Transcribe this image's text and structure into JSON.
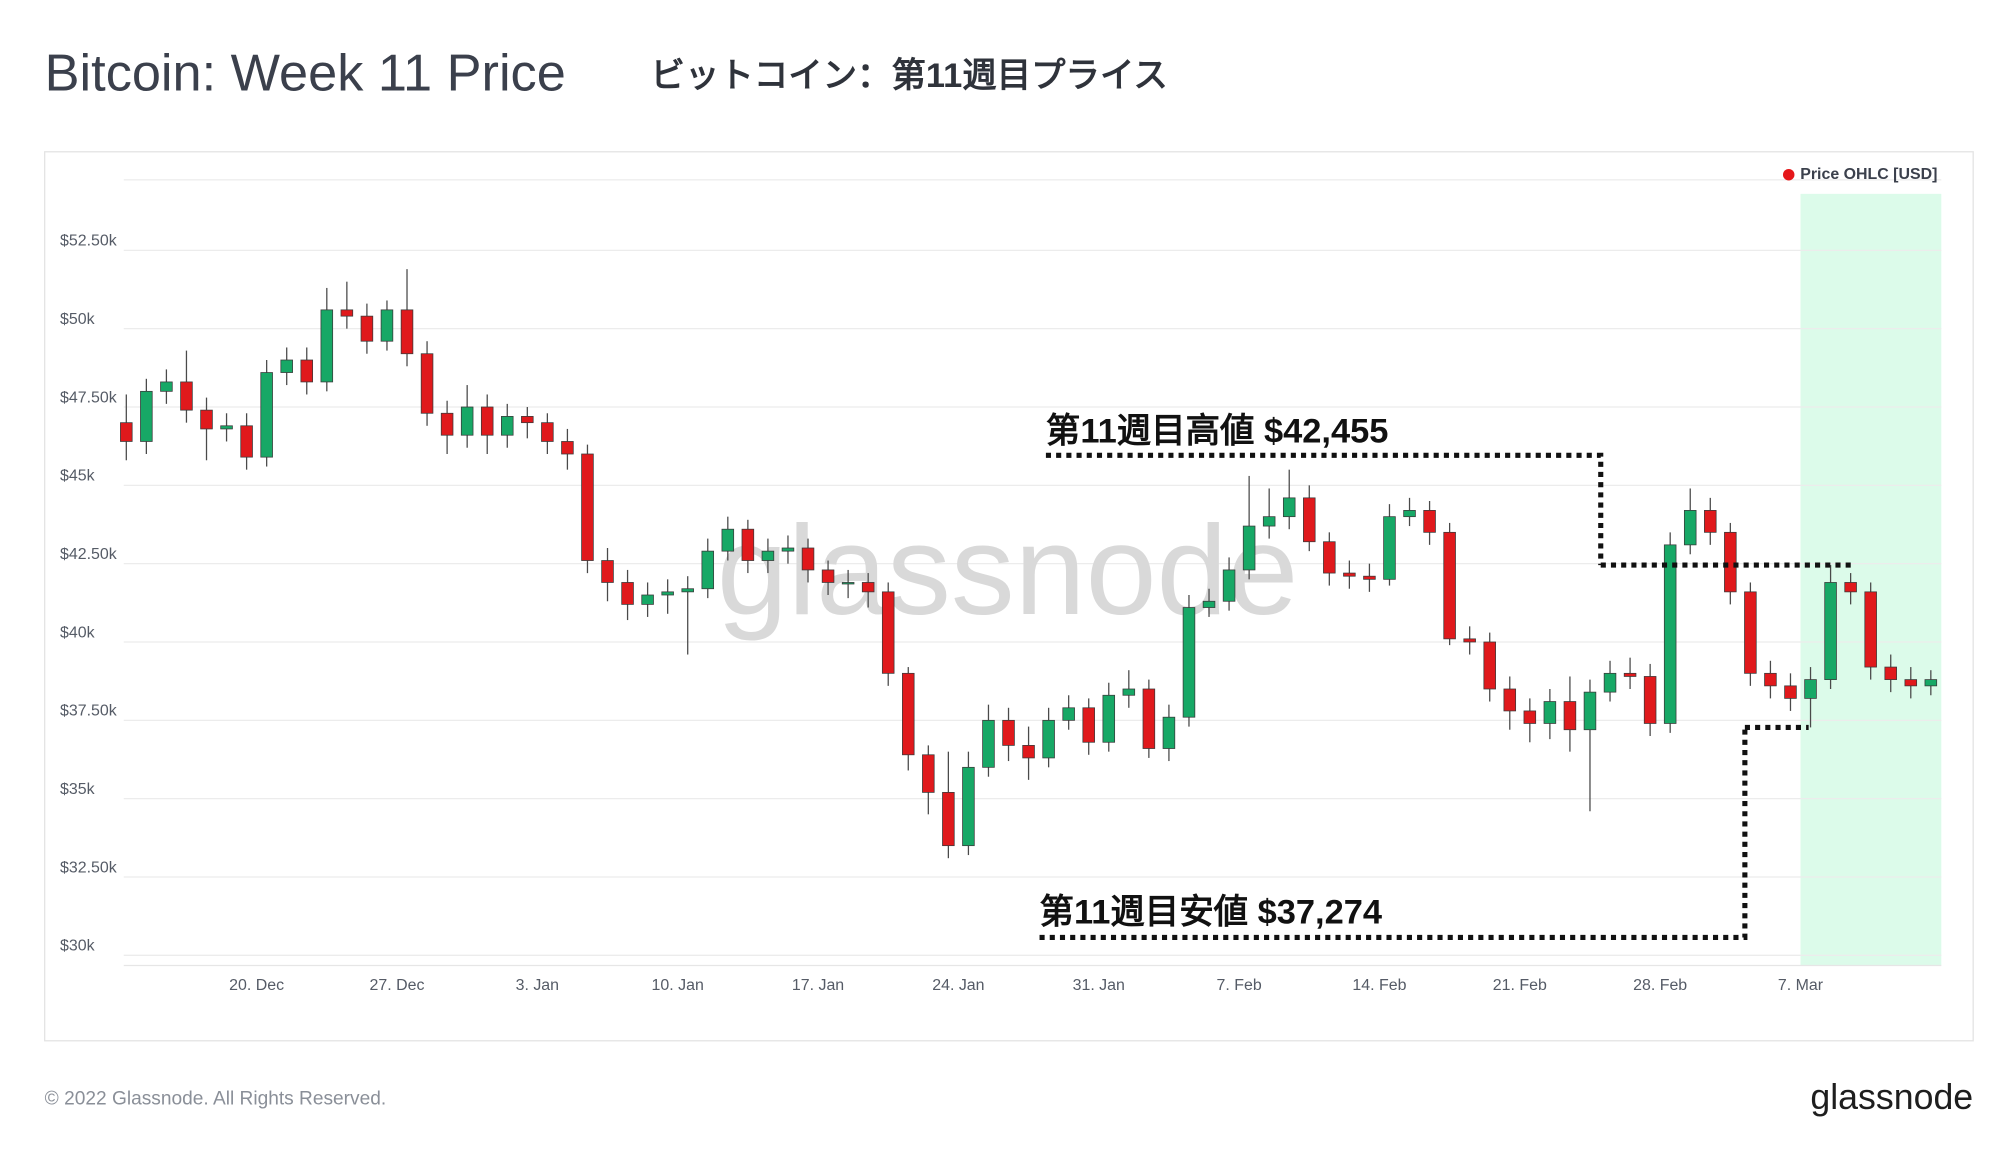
{
  "chart_data": {
    "type": "candlestick",
    "title": "Bitcoin: Week 11 Price",
    "subtitle": "ビットコイン：第11週目プライス",
    "x": [
      "13. Dec",
      "14. Dec",
      "15. Dec",
      "16. Dec",
      "17. Dec",
      "18. Dec",
      "19. Dec",
      "20. Dec",
      "21. Dec",
      "22. Dec",
      "23. Dec",
      "24. Dec",
      "25. Dec",
      "26. Dec",
      "27. Dec",
      "28. Dec",
      "29. Dec",
      "30. Dec",
      "31. Dec",
      "1. Jan",
      "2. Jan",
      "3. Jan",
      "4. Jan",
      "5. Jan",
      "6. Jan",
      "7. Jan",
      "8. Jan",
      "9. Jan",
      "10. Jan",
      "11. Jan",
      "12. Jan",
      "13. Jan",
      "14. Jan",
      "15. Jan",
      "16. Jan",
      "17. Jan",
      "18. Jan",
      "19. Jan",
      "20. Jan",
      "21. Jan",
      "22. Jan",
      "23. Jan",
      "24. Jan",
      "25. Jan",
      "26. Jan",
      "27. Jan",
      "28. Jan",
      "29. Jan",
      "30. Jan",
      "31. Jan",
      "1. Feb",
      "2. Feb",
      "3. Feb",
      "4. Feb",
      "5. Feb",
      "6. Feb",
      "7. Feb",
      "8. Feb",
      "9. Feb",
      "10. Feb",
      "11. Feb",
      "12. Feb",
      "13. Feb",
      "14. Feb",
      "15. Feb",
      "16. Feb",
      "17. Feb",
      "18. Feb",
      "19. Feb",
      "20. Feb",
      "21. Feb",
      "22. Feb",
      "23. Feb",
      "24. Feb",
      "25. Feb",
      "26. Feb",
      "27. Feb",
      "28. Feb",
      "1. Mar",
      "2. Mar",
      "3. Mar",
      "4. Mar",
      "5. Mar",
      "6. Mar",
      "7. Mar",
      "8. Mar",
      "9. Mar",
      "10. Mar",
      "11. Mar",
      "12. Mar",
      "13. Mar"
    ],
    "series": [
      {
        "name": "Price OHLC [USD]",
        "color": "#e5171a",
        "open": [
          47000,
          46400,
          48000,
          48300,
          47400,
          46800,
          46900,
          45900,
          48600,
          49000,
          48300,
          50600,
          50400,
          49600,
          50600,
          49200,
          47300,
          46600,
          47500,
          46600,
          47200,
          47000,
          46400,
          46000,
          42600,
          41900,
          41200,
          41500,
          41600,
          41700,
          42900,
          43600,
          42600,
          42900,
          43000,
          42300,
          41900,
          41900,
          41600,
          39000,
          36400,
          35200,
          33500,
          36000,
          37500,
          36700,
          36300,
          37500,
          37900,
          36800,
          38300,
          38500,
          36600,
          37600,
          41100,
          41300,
          42300,
          43700,
          44000,
          44600,
          43200,
          42200,
          42100,
          42000,
          44000,
          44200,
          43500,
          40100,
          40000,
          38500,
          37800,
          37400,
          38100,
          37200,
          38400,
          39000,
          38900,
          37400,
          43100,
          44200,
          43500,
          41600,
          39000,
          38600,
          38200,
          38800,
          41900,
          41600,
          39200,
          38800,
          38600
        ],
        "high": [
          47900,
          48400,
          48700,
          49300,
          47800,
          47300,
          47300,
          49000,
          49400,
          49400,
          51300,
          51500,
          50800,
          50900,
          51900,
          49600,
          47700,
          48200,
          47900,
          47600,
          47500,
          47300,
          46800,
          46300,
          43000,
          42300,
          41900,
          42000,
          42100,
          43300,
          44000,
          43900,
          43300,
          43400,
          43300,
          42600,
          42300,
          42200,
          41900,
          39200,
          36700,
          36500,
          36500,
          38000,
          37900,
          37300,
          37900,
          38300,
          38200,
          38700,
          39100,
          38800,
          38000,
          41500,
          41700,
          42700,
          45300,
          44900,
          45500,
          45000,
          43500,
          42600,
          42500,
          44400,
          44600,
          44500,
          43800,
          40500,
          40300,
          38900,
          38200,
          38500,
          38900,
          38800,
          39400,
          39500,
          39300,
          43500,
          44900,
          44600,
          43800,
          41900,
          39400,
          39000,
          39200,
          42455,
          42200,
          41900,
          39600,
          39200,
          39100
        ],
        "low": [
          45800,
          46000,
          47600,
          47000,
          45800,
          46400,
          45500,
          45600,
          48200,
          47900,
          48000,
          50000,
          49200,
          49300,
          48800,
          46900,
          46000,
          46200,
          46000,
          46200,
          46500,
          46000,
          45500,
          42200,
          41300,
          40700,
          40800,
          40900,
          39600,
          41400,
          42600,
          42200,
          42200,
          42500,
          41900,
          41500,
          41400,
          41100,
          38600,
          35900,
          34500,
          33100,
          33200,
          35700,
          36200,
          35600,
          36000,
          37200,
          36400,
          36500,
          37900,
          36300,
          36200,
          37300,
          40800,
          41000,
          42000,
          43300,
          43600,
          42900,
          41800,
          41700,
          41600,
          41800,
          43700,
          43100,
          39900,
          39600,
          38100,
          37200,
          36800,
          36900,
          36500,
          34600,
          38100,
          38500,
          37000,
          37100,
          42800,
          43100,
          41200,
          38600,
          38200,
          37800,
          37274,
          38500,
          41200,
          38800,
          38400,
          38200,
          38300
        ],
        "close": [
          46400,
          48000,
          48300,
          47400,
          46800,
          46900,
          45900,
          48600,
          49000,
          48300,
          50600,
          50400,
          49600,
          50600,
          49200,
          47300,
          46600,
          47500,
          46600,
          47200,
          47000,
          46400,
          46000,
          42600,
          41900,
          41200,
          41500,
          41600,
          41700,
          42900,
          43600,
          42600,
          42900,
          43000,
          42300,
          41900,
          41900,
          41600,
          39000,
          36400,
          35200,
          33500,
          36000,
          37500,
          36700,
          36300,
          37500,
          37900,
          36800,
          38300,
          38500,
          36600,
          37600,
          41100,
          41300,
          42300,
          43700,
          44000,
          44600,
          43200,
          42200,
          42100,
          42000,
          44000,
          44200,
          43500,
          40100,
          40000,
          38500,
          37800,
          37400,
          38100,
          37200,
          38400,
          39000,
          38900,
          37400,
          43100,
          44200,
          43500,
          41600,
          39000,
          38600,
          38200,
          38800,
          41900,
          41600,
          39200,
          38800,
          38600,
          38800
        ]
      }
    ],
    "up_color": "#17a866",
    "down_color": "#e0191c",
    "ylim": [
      30000,
      54750
    ],
    "yticks": [
      {
        "value": 30000,
        "label": "$30k"
      },
      {
        "value": 32500,
        "label": "$32.50k"
      },
      {
        "value": 35000,
        "label": "$35k"
      },
      {
        "value": 37500,
        "label": "$37.50k"
      },
      {
        "value": 40000,
        "label": "$40k"
      },
      {
        "value": 42500,
        "label": "$42.50k"
      },
      {
        "value": 45000,
        "label": "$45k"
      },
      {
        "value": 47500,
        "label": "$47.50k"
      },
      {
        "value": 50000,
        "label": "$50k"
      },
      {
        "value": 52500,
        "label": "$52.50k"
      }
    ],
    "xticks": [
      "20. Dec",
      "27. Dec",
      "3. Jan",
      "10. Jan",
      "17. Jan",
      "24. Jan",
      "31. Jan",
      "7. Feb",
      "14. Feb",
      "21. Feb",
      "28. Feb",
      "7. Mar"
    ],
    "grid": true,
    "legend": "top-right",
    "highlight": {
      "from": "7. Mar",
      "color": "#dcfbea"
    },
    "watermark": "glassnode",
    "annotations": [
      {
        "text": "第11週目高値 $42,455",
        "value": 42455
      },
      {
        "text": "第11週目安値 $37,274",
        "value": 37274
      }
    ]
  },
  "footer": {
    "copyright": "© 2022 Glassnode. All Rights Reserved.",
    "logo": "glassnode"
  }
}
